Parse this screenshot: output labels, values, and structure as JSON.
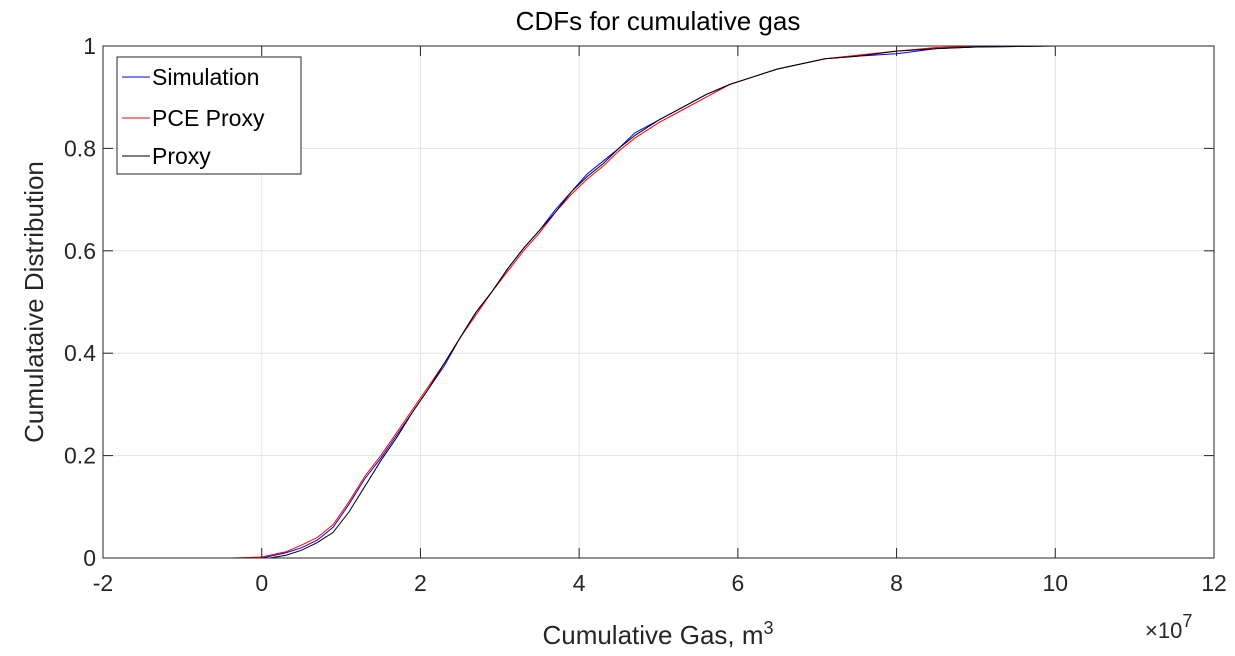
{
  "chart_data": {
    "type": "line",
    "title": "CDFs for cumulative gas",
    "xlabel_base": "Cumulative Gas, m",
    "xlabel_sup": "3",
    "ylabel": "Cumulataive Distribution",
    "x_multiplier_base": "×10",
    "x_multiplier_exp": "7",
    "xlim": [
      -2,
      12
    ],
    "ylim": [
      0,
      1
    ],
    "xticks": [
      -2,
      0,
      2,
      4,
      6,
      8,
      10,
      12
    ],
    "yticks": [
      0,
      0.2,
      0.4,
      0.6,
      0.8,
      1
    ],
    "xtick_labels": [
      "-2",
      "0",
      "2",
      "4",
      "6",
      "8",
      "10",
      "12"
    ],
    "ytick_labels": [
      "0",
      "0.2",
      "0.4",
      "0.6",
      "0.8",
      "1"
    ],
    "grid": true,
    "legend_position": "top-left",
    "series": [
      {
        "name": "Simulation",
        "color": "#0000ff",
        "x": [
          0.0,
          0.3,
          0.5,
          0.7,
          0.9,
          1.1,
          1.3,
          1.5,
          1.7,
          1.9,
          2.1,
          2.3,
          2.5,
          2.7,
          2.9,
          3.1,
          3.3,
          3.5,
          3.7,
          3.9,
          4.1,
          4.3,
          4.5,
          4.7,
          5.0,
          5.3,
          5.6,
          5.9,
          6.2,
          6.5,
          6.8,
          7.1,
          7.5,
          8.0,
          8.5,
          9.0,
          10.0,
          11.3
        ],
        "y": [
          0.0,
          0.01,
          0.02,
          0.035,
          0.06,
          0.105,
          0.155,
          0.195,
          0.24,
          0.285,
          0.33,
          0.375,
          0.43,
          0.48,
          0.52,
          0.565,
          0.605,
          0.64,
          0.68,
          0.715,
          0.75,
          0.775,
          0.8,
          0.83,
          0.855,
          0.88,
          0.905,
          0.925,
          0.94,
          0.955,
          0.965,
          0.975,
          0.98,
          0.985,
          0.995,
          0.998,
          1.0,
          1.0
        ]
      },
      {
        "name": "PCE Proxy",
        "color": "#ff0000",
        "x": [
          -0.4,
          0.0,
          0.3,
          0.5,
          0.7,
          0.9,
          1.1,
          1.3,
          1.5,
          1.7,
          1.9,
          2.1,
          2.3,
          2.5,
          2.7,
          2.9,
          3.1,
          3.3,
          3.5,
          3.7,
          3.9,
          4.1,
          4.3,
          4.5,
          4.7,
          5.0,
          5.3,
          5.6,
          5.9,
          6.2,
          6.5,
          6.8,
          7.1,
          7.5,
          8.0,
          8.5,
          9.0,
          10.0
        ],
        "y": [
          0.0,
          0.002,
          0.012,
          0.025,
          0.04,
          0.065,
          0.11,
          0.16,
          0.2,
          0.245,
          0.29,
          0.335,
          0.38,
          0.43,
          0.475,
          0.52,
          0.56,
          0.6,
          0.635,
          0.675,
          0.71,
          0.74,
          0.765,
          0.795,
          0.82,
          0.85,
          0.875,
          0.9,
          0.925,
          0.94,
          0.955,
          0.965,
          0.975,
          0.982,
          0.99,
          0.997,
          0.999,
          1.0
        ]
      },
      {
        "name": "Proxy",
        "color": "#000000",
        "x": [
          0.1,
          0.3,
          0.5,
          0.7,
          0.9,
          1.1,
          1.3,
          1.5,
          1.7,
          1.9,
          2.1,
          2.3,
          2.5,
          2.7,
          2.9,
          3.1,
          3.3,
          3.5,
          3.7,
          3.9,
          4.1,
          4.3,
          4.5,
          4.7,
          5.0,
          5.3,
          5.6,
          5.9,
          6.2,
          6.5,
          6.8,
          7.1,
          7.5,
          8.0,
          8.5,
          9.0,
          10.0
        ],
        "y": [
          0.0,
          0.005,
          0.015,
          0.03,
          0.05,
          0.09,
          0.14,
          0.19,
          0.235,
          0.285,
          0.33,
          0.38,
          0.43,
          0.48,
          0.52,
          0.565,
          0.605,
          0.64,
          0.675,
          0.715,
          0.745,
          0.77,
          0.8,
          0.825,
          0.855,
          0.88,
          0.905,
          0.925,
          0.94,
          0.955,
          0.965,
          0.975,
          0.98,
          0.99,
          0.995,
          0.998,
          1.0
        ]
      }
    ]
  }
}
